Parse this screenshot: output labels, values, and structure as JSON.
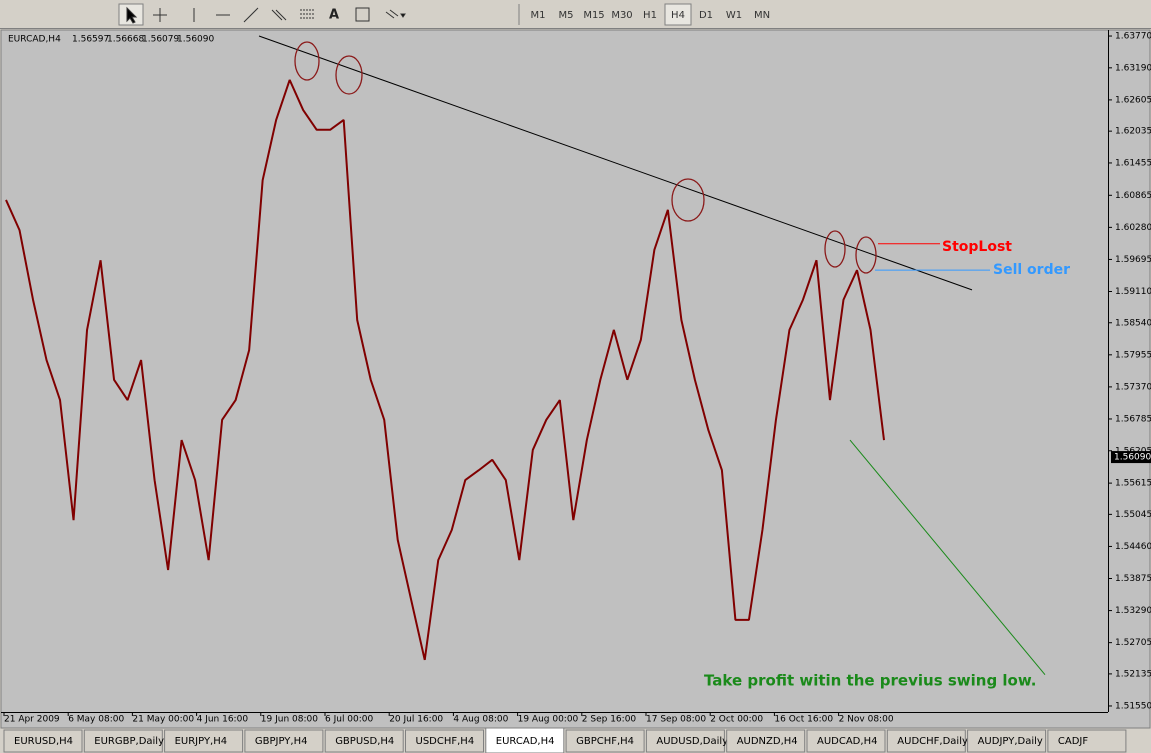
{
  "toolbar": {
    "text_tool": "A",
    "timeframes": [
      "M1",
      "M5",
      "M15",
      "M30",
      "H1",
      "H4",
      "D1",
      "W1",
      "MN"
    ],
    "active_timeframe": 5
  },
  "chart_data": {
    "type": "line",
    "header": "EURCAD,H4",
    "ohlc": [
      "1.56597",
      "1.56668",
      "1.56079",
      "1.56090"
    ],
    "color": "#800000",
    "x_labels": [
      "21 Apr 2009",
      "6 May 08:00",
      "21 May 00:00",
      "4 Jun 16:00",
      "19 Jun 08:00",
      "6 Jul 00:00",
      "20 Jul 16:00",
      "4 Aug 08:00",
      "19 Aug 00:00",
      "2 Sep 16:00",
      "17 Sep 08:00",
      "2 Oct 00:00",
      "16 Oct 16:00",
      "2 Nov 08:00"
    ],
    "values": [
      1.6078,
      1.6023,
      1.5896,
      1.5786,
      1.5713,
      1.5494,
      1.5841,
      1.5968,
      1.575,
      1.5713,
      1.5786,
      1.5567,
      1.5403,
      1.564,
      1.5567,
      1.5421,
      1.5677,
      1.5713,
      1.5804,
      1.6114,
      1.6224,
      1.6297,
      1.6242,
      1.6206,
      1.6206,
      1.6224,
      1.5859,
      1.575,
      1.5677,
      1.5458,
      1.5348,
      1.5239,
      1.5421,
      1.5476,
      1.5567,
      1.5585,
      1.5604,
      1.5567,
      1.5421,
      1.5622,
      1.5677,
      1.5713,
      1.5494,
      1.564,
      1.575,
      1.5841,
      1.575,
      1.5823,
      1.5987,
      1.606,
      1.5859,
      1.575,
      1.5658,
      1.5585,
      1.5312,
      1.5312,
      1.5476,
      1.5677,
      1.5841,
      1.5896,
      1.5968,
      1.5713,
      1.5896,
      1.595,
      1.5841,
      1.564
    ],
    "ylim": [
      1.5144,
      1.6388
    ],
    "yticks": [
      {
        "value": 1.6377,
        "label": "1.63770"
      },
      {
        "value": 1.6319,
        "label": "1.63190"
      },
      1.62605,
      1.62035,
      1.61455,
      1.60865,
      {
        "value": 1.6028,
        "label": "1.60280"
      },
      1.59695,
      {
        "value": 1.5911,
        "label": "1.59110"
      },
      {
        "value": 1.5854,
        "label": "1.58540"
      },
      1.57955,
      {
        "value": 1.5737,
        "label": "1.57370"
      },
      1.56785,
      1.56205,
      1.55615,
      1.55045,
      {
        "value": 1.5446,
        "label": "1.54460"
      },
      1.53875,
      {
        "value": 1.5329,
        "label": "1.53290"
      },
      1.52705,
      1.52135,
      {
        "value": 1.5155,
        "label": "1.51550"
      }
    ],
    "current_price": {
      "value": 1.5609,
      "label": "1.56090"
    },
    "trendline": [
      1.6377,
      1.5914
    ],
    "target_line": [
      1.564,
      1.5212
    ],
    "stop_loss": {
      "value": 1.5998,
      "label": "StopLost",
      "color": "#ff0000"
    },
    "sell_order": {
      "value": 1.595,
      "label": "Sell order",
      "color": "#3399ff"
    },
    "take_profit_note": "Take profit witin the previus swing low."
  },
  "tabs": [
    "EURUSD,H4",
    "EURGBP,Daily",
    "EURJPY,H4",
    "GBPJPY,H4",
    "GBPUSD,H4",
    "USDCHF,H4",
    "EURCAD,H4",
    "GBPCHF,H4",
    "AUDUSD,Daily",
    "AUDNZD,H4",
    "AUDCAD,H4",
    "AUDCHF,Daily",
    "AUDJPY,Daily",
    "CADJF"
  ],
  "active_tab": 6
}
